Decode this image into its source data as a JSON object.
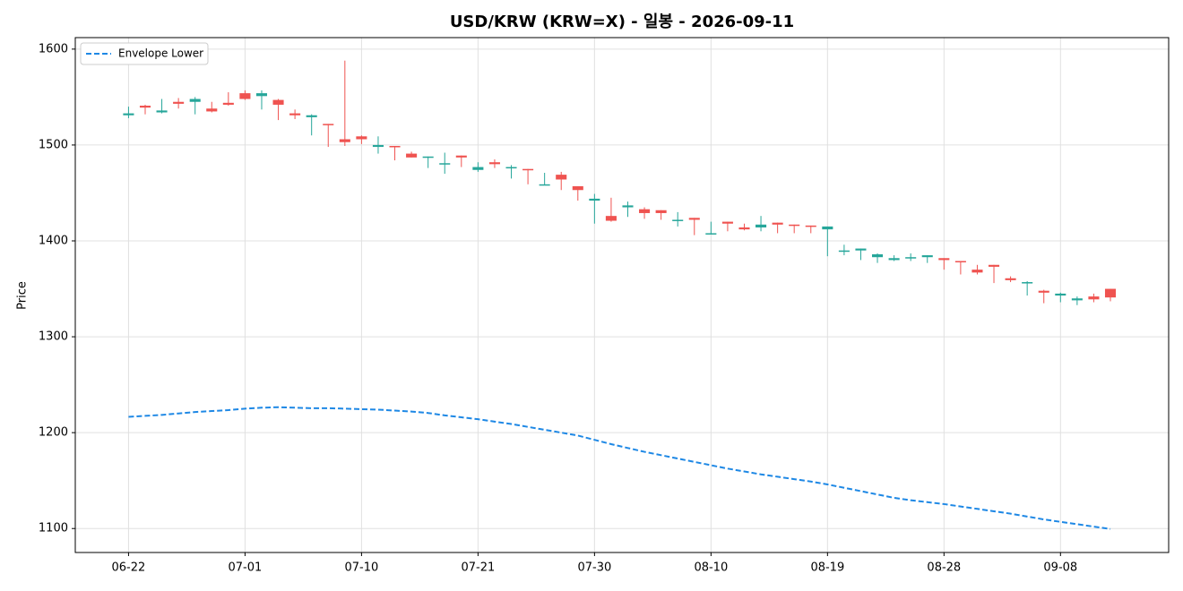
{
  "chart_data": {
    "type": "candlestick",
    "title": "USD/KRW (KRW=X) - 일봉 - 2026-09-11",
    "ylabel": "Price",
    "categories": [
      "06-22",
      null,
      null,
      null,
      null,
      null,
      null,
      "07-01",
      null,
      null,
      null,
      null,
      null,
      null,
      "07-10",
      null,
      null,
      null,
      null,
      null,
      null,
      "07-21",
      null,
      null,
      null,
      null,
      null,
      null,
      "07-30",
      null,
      null,
      null,
      null,
      null,
      null,
      "08-10",
      null,
      null,
      null,
      null,
      null,
      null,
      "08-19",
      null,
      null,
      null,
      null,
      null,
      null,
      "08-28",
      null,
      null,
      null,
      null,
      null,
      null,
      "09-08",
      null,
      null,
      null
    ],
    "open": [
      1531,
      1541,
      1534,
      1545,
      1545,
      1538,
      1544,
      1554,
      1551,
      1547,
      1533,
      1529,
      1522,
      1506,
      1509,
      1498,
      1499,
      1491,
      1487,
      1480,
      1489,
      1474,
      1482,
      1476,
      1475,
      1458,
      1469,
      1457,
      1442,
      1426,
      1435,
      1433,
      1432,
      1421,
      1424,
      1407,
      1420,
      1414,
      1414,
      1419,
      1417,
      1416,
      1412,
      1389,
      1390,
      1383,
      1380,
      1382,
      1383,
      1382,
      1379,
      1370,
      1375,
      1361,
      1356,
      1348,
      1343,
      1338,
      1342,
      1350
    ],
    "high": [
      1540,
      1542,
      1548,
      1549,
      1550,
      1545,
      1555,
      1557,
      1557,
      1548,
      1537,
      1532,
      1522,
      1588,
      1510,
      1509,
      1499,
      1493,
      1488,
      1492,
      1489,
      1482,
      1485,
      1479,
      1475,
      1471,
      1472,
      1457,
      1449,
      1445,
      1441,
      1435,
      1432,
      1430,
      1424,
      1420,
      1420,
      1418,
      1426,
      1419,
      1417,
      1416,
      1415,
      1396,
      1392,
      1387,
      1385,
      1387,
      1385,
      1382,
      1379,
      1375,
      1375,
      1363,
      1358,
      1349,
      1346,
      1342,
      1345,
      1350
    ],
    "low": [
      1528,
      1532,
      1533,
      1538,
      1532,
      1534,
      1541,
      1547,
      1537,
      1526,
      1527,
      1510,
      1498,
      1499,
      1501,
      1491,
      1484,
      1487,
      1476,
      1470,
      1477,
      1472,
      1476,
      1465,
      1459,
      1458,
      1453,
      1442,
      1418,
      1420,
      1425,
      1423,
      1422,
      1415,
      1406,
      1407,
      1410,
      1411,
      1410,
      1408,
      1408,
      1408,
      1384,
      1385,
      1380,
      1377,
      1379,
      1379,
      1377,
      1370,
      1365,
      1365,
      1356,
      1357,
      1343,
      1335,
      1336,
      1333,
      1336,
      1337
    ],
    "close": [
      1533,
      1539,
      1536,
      1543,
      1548,
      1535,
      1542,
      1548,
      1554,
      1542,
      1531,
      1531,
      1521,
      1503,
      1506,
      1500,
      1498,
      1487,
      1488,
      1481,
      1487,
      1477,
      1480,
      1477,
      1474,
      1459,
      1464,
      1453,
      1444,
      1421,
      1437,
      1429,
      1429,
      1422,
      1422,
      1408,
      1418,
      1412,
      1417,
      1417,
      1416,
      1415,
      1415,
      1390,
      1392,
      1386,
      1382,
      1383,
      1385,
      1380,
      1378,
      1367,
      1373,
      1359,
      1357,
      1346,
      1345,
      1340,
      1339,
      1341
    ],
    "up_color": "#26a69a",
    "down_color": "#ef5350",
    "lines": [
      {
        "name": "Envelope Lower",
        "color": "#1e88e5",
        "dashed": true,
        "values": [
          1216.5,
          1217.5,
          1218.5,
          1220,
          1221.5,
          1222.5,
          1223.5,
          1225,
          1226,
          1226.5,
          1226,
          1225.5,
          1225.5,
          1225,
          1224.5,
          1224,
          1223,
          1222,
          1220.5,
          1218,
          1216,
          1214,
          1211.5,
          1209,
          1206,
          1203,
          1200,
          1197,
          1192.5,
          1188,
          1184,
          1180,
          1176.5,
          1173,
          1169.5,
          1166,
          1162.5,
          1159.5,
          1156.5,
          1154,
          1151.5,
          1149,
          1146,
          1142.5,
          1139,
          1135.5,
          1132,
          1129.5,
          1127.5,
          1125.5,
          1123,
          1120.5,
          1118,
          1115.5,
          1112.5,
          1109.5,
          1107,
          1104.5,
          1102,
          1099.5
        ]
      }
    ],
    "xlim": [
      -3.2,
      62.5
    ],
    "ylim": [
      1075,
      1612
    ],
    "yticks": [
      1100,
      1200,
      1300,
      1400,
      1500,
      1600
    ],
    "grid": true,
    "legend": "upper left"
  }
}
